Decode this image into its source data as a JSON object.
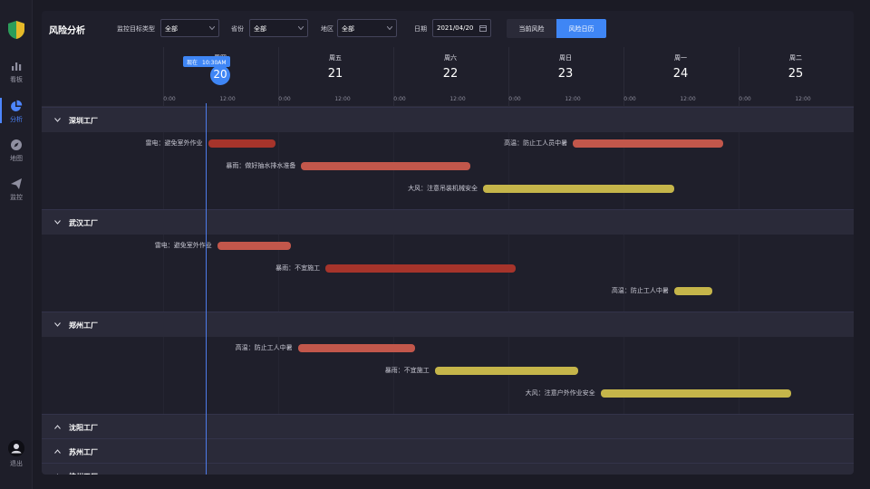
{
  "nav": {
    "items": [
      {
        "label": "看板",
        "icon": "bar-chart-icon"
      },
      {
        "label": "分析",
        "icon": "pie-chart-icon"
      },
      {
        "label": "地图",
        "icon": "compass-icon"
      },
      {
        "label": "监控",
        "icon": "send-icon"
      }
    ],
    "logout": "退出"
  },
  "toolbar": {
    "title": "风险分析",
    "filters": [
      {
        "label": "监控目标类型",
        "value": "全部"
      },
      {
        "label": "省份",
        "value": "全部"
      },
      {
        "label": "地区",
        "value": "全部"
      }
    ],
    "date_label": "日期",
    "date_value": "2021/04/20",
    "seg_current": "当前风险",
    "seg_calendar": "风险日历"
  },
  "calendar": {
    "days": [
      {
        "dow": "周四",
        "num": "20",
        "today": true
      },
      {
        "dow": "周五",
        "num": "21",
        "today": false
      },
      {
        "dow": "周六",
        "num": "22",
        "today": false
      },
      {
        "dow": "周日",
        "num": "23",
        "today": false
      },
      {
        "dow": "周一",
        "num": "24",
        "today": false
      },
      {
        "dow": "周二",
        "num": "25",
        "today": false
      }
    ],
    "hour_labels": [
      "0:00",
      "12:00"
    ],
    "now_label": "现在",
    "now_time": "10:30AM"
  },
  "groups": [
    {
      "name": "深圳工厂",
      "expanded": true,
      "risks": [
        {
          "label": "雷电：避免室外作业",
          "start": 0.39,
          "end": 0.98,
          "color": "red"
        },
        {
          "label": "暴雨：做好抽水排水准备",
          "start": 1.2,
          "end": 2.67,
          "color": "salmon"
        },
        {
          "label": "大风：注意吊装机械安全",
          "start": 2.78,
          "end": 4.44,
          "color": "yellow"
        },
        {
          "label": "高温：防止工人员中暑",
          "start": 3.56,
          "end": 4.87,
          "color": "salmon"
        }
      ]
    },
    {
      "name": "武汉工厂",
      "expanded": true,
      "risks": [
        {
          "label": "雷电：避免室外作业",
          "start": 0.47,
          "end": 1.11,
          "color": "salmon"
        },
        {
          "label": "暴雨：不宜施工",
          "start": 1.41,
          "end": 3.06,
          "color": "red"
        },
        {
          "label": "高温：防止工人中暑",
          "start": 4.44,
          "end": 4.77,
          "color": "yellow"
        }
      ]
    },
    {
      "name": "郑州工厂",
      "expanded": true,
      "risks": [
        {
          "label": "高温：防止工人中暑",
          "start": 1.17,
          "end": 2.19,
          "color": "salmon"
        },
        {
          "label": "暴雨：不宜施工",
          "start": 2.36,
          "end": 3.61,
          "color": "yellow"
        },
        {
          "label": "大风：注意户外作业安全",
          "start": 3.8,
          "end": 5.46,
          "color": "yellow"
        }
      ]
    },
    {
      "name": "沈阳工厂",
      "expanded": false,
      "risks": []
    },
    {
      "name": "苏州工厂",
      "expanded": false,
      "risks": []
    },
    {
      "name": "杭州工厂",
      "expanded": false,
      "risks": []
    }
  ],
  "colors": {
    "accent": "#3f86f5",
    "risk_red": "#a6342b",
    "risk_salmon": "#c2574b",
    "risk_yellow": "#c5b54a"
  }
}
